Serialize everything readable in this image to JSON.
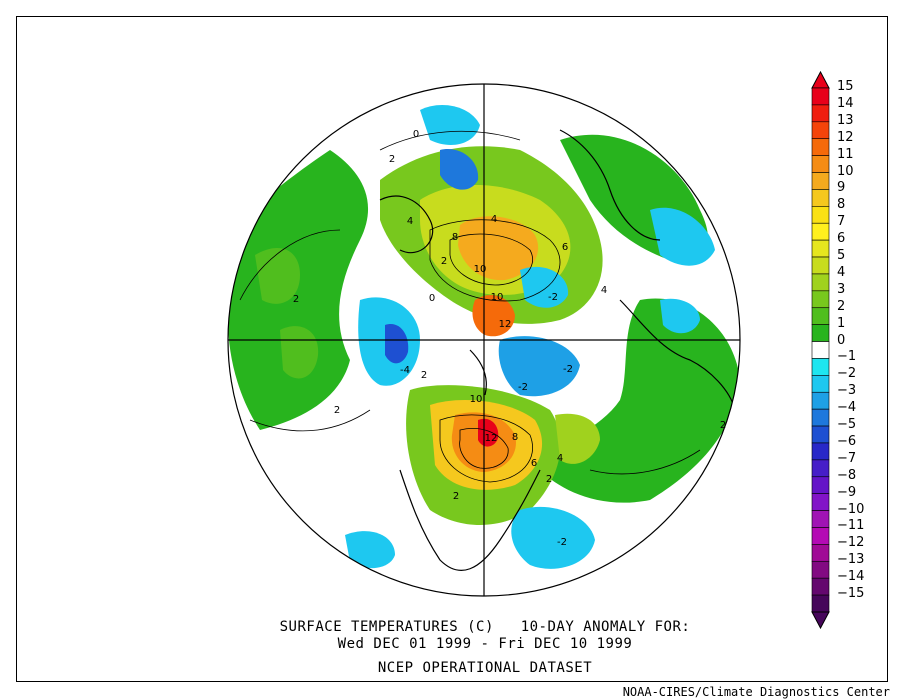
{
  "map": {
    "title_line1": "SURFACE TEMPERATURES (C)   10-DAY ANOMALY FOR:",
    "title_line2": "Wed DEC 01 1999 - Fri DEC 10 1999",
    "dataset": "NCEP OPERATIONAL DATASET",
    "credit": "NOAA-CIRES/Climate Diagnostics Center",
    "projection": "north polar stereographic",
    "contour_labels": [
      "2",
      "2",
      "2",
      "2",
      "4",
      "4",
      "4",
      "6",
      "8",
      "10",
      "10",
      "12",
      "10",
      "12",
      "8",
      "6",
      "4",
      "2",
      "2",
      "-2",
      "-2",
      "-2",
      "-4",
      "0",
      "0",
      "2",
      "-2",
      "2"
    ]
  },
  "colorbar": {
    "levels": [
      "15",
      "14",
      "13",
      "12",
      "11",
      "10",
      "9",
      "8",
      "7",
      "6",
      "5",
      "4",
      "3",
      "2",
      "1",
      "0",
      "−1",
      "−2",
      "−3",
      "−4",
      "−5",
      "−6",
      "−7",
      "−8",
      "−9",
      "−10",
      "−11",
      "−12",
      "−13",
      "−14",
      "−15"
    ],
    "colors": [
      "#e8001a",
      "#f01e0f",
      "#f5440a",
      "#f56a0a",
      "#f58c14",
      "#f5aa1e",
      "#f5c81e",
      "#fae114",
      "#fff01e",
      "#e6e61e",
      "#c8dc1e",
      "#a0d21e",
      "#78c81e",
      "#50be1e",
      "#28b41e",
      "#ffffff",
      "#1ee6f0",
      "#1ec8f0",
      "#1ea0e6",
      "#1e78dc",
      "#1e50d2",
      "#2828c8",
      "#461ec8",
      "#6414c8",
      "#8214c8",
      "#a014b4",
      "#b40ab4",
      "#a00a96",
      "#820a82",
      "#64086e",
      "#46065a"
    ]
  }
}
